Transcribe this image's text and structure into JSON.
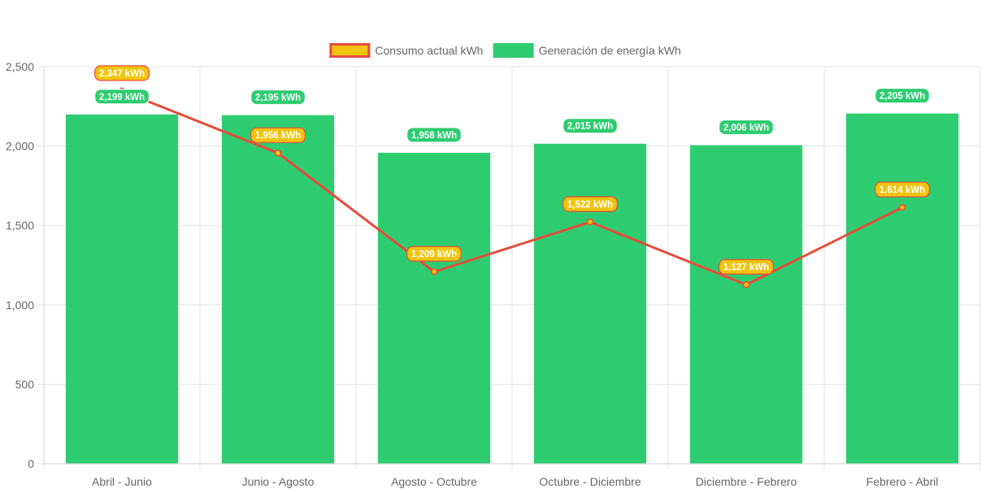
{
  "chart_data": {
    "type": "bar",
    "categories": [
      "Abril - Junio",
      "Junio - Agosto",
      "Agosto - Octubre",
      "Octubre - Diciembre",
      "Diciembre - Febrero",
      "Febrero - Abril"
    ],
    "series": [
      {
        "name": "Generación de energía kWh",
        "type": "bar",
        "color": "#2ecc71",
        "values": [
          2199,
          2195,
          1958,
          2015,
          2006,
          2205
        ],
        "labels": [
          "2,199 kWh",
          "2,195 kWh",
          "1,958 kWh",
          "2,015 kWh",
          "2,006 kWh",
          "2,205 kWh"
        ]
      },
      {
        "name": "Consumo actual kWh",
        "type": "line",
        "color": "#e74c3c",
        "point_color": "#f1c40f",
        "values": [
          2347,
          1956,
          1209,
          1522,
          1127,
          1614
        ],
        "labels": [
          "2,347 kWh",
          "1,956 kWh",
          "1,209 kWh",
          "1,522 kWh",
          "1,127 kWh",
          "1,614 kWh"
        ]
      }
    ],
    "legend": {
      "position": "top",
      "items": [
        {
          "label": "Consumo actual kWh",
          "fill": "#f1c40f",
          "border": "#e74c3c"
        },
        {
          "label": "Generación de energía kWh",
          "fill": "#2ecc71",
          "border": "#2ecc71"
        }
      ]
    },
    "ylim": [
      0,
      2500
    ],
    "yticks": [
      0,
      500,
      1000,
      1500,
      2000,
      2500
    ],
    "ytick_labels": [
      "0",
      "500",
      "1,000",
      "1,500",
      "2,000",
      "2,500"
    ],
    "grid": true,
    "title": "",
    "xlabel": "",
    "ylabel": ""
  }
}
